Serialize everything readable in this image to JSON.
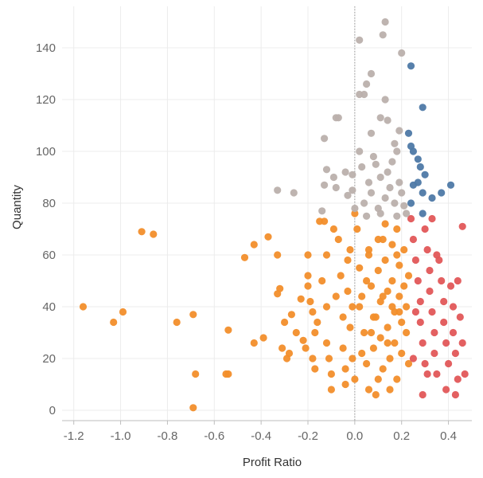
{
  "chart_data": {
    "type": "scatter",
    "xlabel": "Profit Ratio",
    "ylabel": "Quantity",
    "xlim": [
      -1.25,
      0.5
    ],
    "ylim": [
      -4,
      156
    ],
    "x_ticks": [
      -1.2,
      -1.0,
      -0.8,
      -0.6,
      -0.4,
      -0.2,
      0.0,
      0.2,
      0.4
    ],
    "x_tick_labels": [
      "-1.2",
      "-1.0",
      "-0.8",
      "-0.6",
      "-0.4",
      "-0.2",
      "0.0",
      "0.2",
      "0.4"
    ],
    "y_ticks": [
      0,
      20,
      40,
      60,
      80,
      100,
      120,
      140
    ],
    "y_tick_labels": [
      "0",
      "20",
      "40",
      "60",
      "80",
      "100",
      "120",
      "140"
    ],
    "grid": true,
    "reference_line_x": 0.0,
    "colors": {
      "orange": "#f28e2b",
      "red": "#e15759",
      "gray": "#bab0ac",
      "blue": "#4e79a7"
    },
    "series": [
      {
        "name": "orange",
        "points": [
          [
            -1.16,
            40
          ],
          [
            -1.03,
            34
          ],
          [
            -0.99,
            38
          ],
          [
            -0.91,
            69
          ],
          [
            -0.86,
            68
          ],
          [
            -0.76,
            34
          ],
          [
            -0.69,
            37
          ],
          [
            -0.68,
            14
          ],
          [
            -0.69,
            1
          ],
          [
            -0.54,
            14
          ],
          [
            -0.55,
            14
          ],
          [
            -0.54,
            31
          ],
          [
            -0.47,
            59
          ],
          [
            -0.43,
            64
          ],
          [
            -0.43,
            26
          ],
          [
            -0.37,
            67
          ],
          [
            -0.39,
            28
          ],
          [
            -0.33,
            60
          ],
          [
            -0.32,
            47
          ],
          [
            -0.33,
            45
          ],
          [
            -0.31,
            24
          ],
          [
            -0.3,
            34
          ],
          [
            -0.29,
            20
          ],
          [
            -0.28,
            22
          ],
          [
            -0.27,
            37
          ],
          [
            -0.25,
            30
          ],
          [
            -0.23,
            43
          ],
          [
            -0.22,
            27
          ],
          [
            -0.21,
            24
          ],
          [
            -0.2,
            60
          ],
          [
            -0.2,
            52
          ],
          [
            -0.2,
            48
          ],
          [
            -0.19,
            42
          ],
          [
            -0.18,
            38
          ],
          [
            -0.18,
            20
          ],
          [
            -0.17,
            30
          ],
          [
            -0.17,
            16
          ],
          [
            -0.16,
            34
          ],
          [
            -0.15,
            73
          ],
          [
            -0.14,
            50
          ],
          [
            -0.13,
            73
          ],
          [
            -0.12,
            60
          ],
          [
            -0.12,
            40
          ],
          [
            -0.12,
            26
          ],
          [
            -0.11,
            20
          ],
          [
            -0.1,
            14
          ],
          [
            -0.1,
            8
          ],
          [
            -0.09,
            70
          ],
          [
            -0.08,
            44
          ],
          [
            -0.07,
            66
          ],
          [
            -0.06,
            52
          ],
          [
            -0.05,
            36
          ],
          [
            -0.05,
            24
          ],
          [
            -0.04,
            16
          ],
          [
            -0.04,
            10
          ],
          [
            -0.03,
            58
          ],
          [
            -0.03,
            46
          ],
          [
            -0.02,
            62
          ],
          [
            -0.02,
            32
          ],
          [
            -0.01,
            20
          ],
          [
            0.0,
            76
          ],
          [
            -0.01,
            40
          ],
          [
            0.0,
            12
          ],
          [
            0.01,
            70
          ],
          [
            0.02,
            55
          ],
          [
            0.03,
            44
          ],
          [
            0.04,
            30
          ],
          [
            0.05,
            18
          ],
          [
            0.06,
            62
          ],
          [
            0.06,
            8
          ],
          [
            0.07,
            48
          ],
          [
            0.08,
            36
          ],
          [
            0.08,
            24
          ],
          [
            0.09,
            6
          ],
          [
            0.1,
            66
          ],
          [
            0.1,
            54
          ],
          [
            0.11,
            42
          ],
          [
            0.11,
            28
          ],
          [
            0.12,
            16
          ],
          [
            0.13,
            72
          ],
          [
            0.13,
            58
          ],
          [
            0.14,
            46
          ],
          [
            0.14,
            32
          ],
          [
            0.15,
            20
          ],
          [
            0.15,
            8
          ],
          [
            0.16,
            64
          ],
          [
            0.16,
            50
          ],
          [
            0.17,
            38
          ],
          [
            0.17,
            26
          ],
          [
            0.18,
            12
          ],
          [
            0.18,
            70
          ],
          [
            0.19,
            56
          ],
          [
            0.19,
            44
          ],
          [
            0.2,
            34
          ],
          [
            0.2,
            22
          ],
          [
            0.21,
            62
          ],
          [
            0.21,
            48
          ],
          [
            0.22,
            40
          ],
          [
            0.22,
            30
          ],
          [
            0.23,
            18
          ],
          [
            0.23,
            52
          ],
          [
            0.02,
            40
          ],
          [
            0.05,
            50
          ],
          [
            0.09,
            36
          ],
          [
            0.12,
            44
          ],
          [
            0.16,
            40
          ],
          [
            0.19,
            38
          ],
          [
            0.07,
            30
          ],
          [
            0.14,
            26
          ],
          [
            0.03,
            22
          ],
          [
            0.1,
            12
          ],
          [
            0.06,
            60
          ],
          [
            0.12,
            66
          ],
          [
            0.18,
            60
          ]
        ]
      },
      {
        "name": "red",
        "points": [
          [
            0.24,
            74
          ],
          [
            0.25,
            66
          ],
          [
            0.26,
            58
          ],
          [
            0.27,
            50
          ],
          [
            0.28,
            42
          ],
          [
            0.28,
            34
          ],
          [
            0.29,
            26
          ],
          [
            0.3,
            18
          ],
          [
            0.3,
            70
          ],
          [
            0.31,
            62
          ],
          [
            0.32,
            54
          ],
          [
            0.32,
            46
          ],
          [
            0.33,
            38
          ],
          [
            0.34,
            30
          ],
          [
            0.34,
            22
          ],
          [
            0.35,
            14
          ],
          [
            0.36,
            58
          ],
          [
            0.37,
            50
          ],
          [
            0.38,
            42
          ],
          [
            0.38,
            34
          ],
          [
            0.39,
            26
          ],
          [
            0.4,
            18
          ],
          [
            0.41,
            48
          ],
          [
            0.42,
            40
          ],
          [
            0.42,
            30
          ],
          [
            0.43,
            22
          ],
          [
            0.44,
            12
          ],
          [
            0.44,
            50
          ],
          [
            0.45,
            36
          ],
          [
            0.46,
            71
          ],
          [
            0.46,
            26
          ],
          [
            0.47,
            14
          ],
          [
            0.33,
            74
          ],
          [
            0.35,
            60
          ],
          [
            0.29,
            6
          ],
          [
            0.31,
            14
          ],
          [
            0.39,
            8
          ],
          [
            0.43,
            6
          ],
          [
            0.26,
            38
          ],
          [
            0.25,
            20
          ]
        ]
      },
      {
        "name": "gray",
        "points": [
          [
            0.02,
            143
          ],
          [
            0.13,
            150
          ],
          [
            0.12,
            145
          ],
          [
            0.07,
            130
          ],
          [
            0.2,
            138
          ],
          [
            0.02,
            122
          ],
          [
            0.04,
            122
          ],
          [
            0.05,
            126
          ],
          [
            0.13,
            120
          ],
          [
            -0.07,
            113
          ],
          [
            -0.08,
            113
          ],
          [
            -0.13,
            105
          ],
          [
            0.11,
            113
          ],
          [
            0.07,
            107
          ],
          [
            0.14,
            112
          ],
          [
            0.17,
            103
          ],
          [
            0.02,
            100
          ],
          [
            0.08,
            98
          ],
          [
            0.19,
            108
          ],
          [
            0.18,
            100
          ],
          [
            -0.12,
            93
          ],
          [
            -0.13,
            87
          ],
          [
            -0.09,
            90
          ],
          [
            -0.04,
            92
          ],
          [
            -0.01,
            91
          ],
          [
            0.03,
            94
          ],
          [
            0.06,
            88
          ],
          [
            0.09,
            95
          ],
          [
            0.11,
            90
          ],
          [
            0.14,
            92
          ],
          [
            0.16,
            96
          ],
          [
            0.19,
            88
          ],
          [
            -0.33,
            85
          ],
          [
            -0.26,
            84
          ],
          [
            -0.08,
            86
          ],
          [
            -0.03,
            83
          ],
          [
            0.0,
            78
          ],
          [
            0.04,
            80
          ],
          [
            0.07,
            84
          ],
          [
            0.1,
            78
          ],
          [
            0.13,
            82
          ],
          [
            0.15,
            86
          ],
          [
            0.17,
            80
          ],
          [
            0.2,
            84
          ],
          [
            -0.14,
            77
          ],
          [
            -0.01,
            85
          ],
          [
            0.05,
            75
          ],
          [
            0.11,
            76
          ],
          [
            0.18,
            75
          ],
          [
            0.21,
            79
          ],
          [
            0.22,
            76
          ]
        ]
      },
      {
        "name": "blue",
        "points": [
          [
            0.24,
            133
          ],
          [
            0.29,
            117
          ],
          [
            0.23,
            107
          ],
          [
            0.24,
            102
          ],
          [
            0.25,
            100
          ],
          [
            0.27,
            97
          ],
          [
            0.28,
            94
          ],
          [
            0.3,
            91
          ],
          [
            0.25,
            87
          ],
          [
            0.27,
            88
          ],
          [
            0.29,
            84
          ],
          [
            0.33,
            82
          ],
          [
            0.37,
            84
          ],
          [
            0.41,
            87
          ],
          [
            0.24,
            80
          ],
          [
            0.29,
            76
          ]
        ]
      }
    ]
  }
}
